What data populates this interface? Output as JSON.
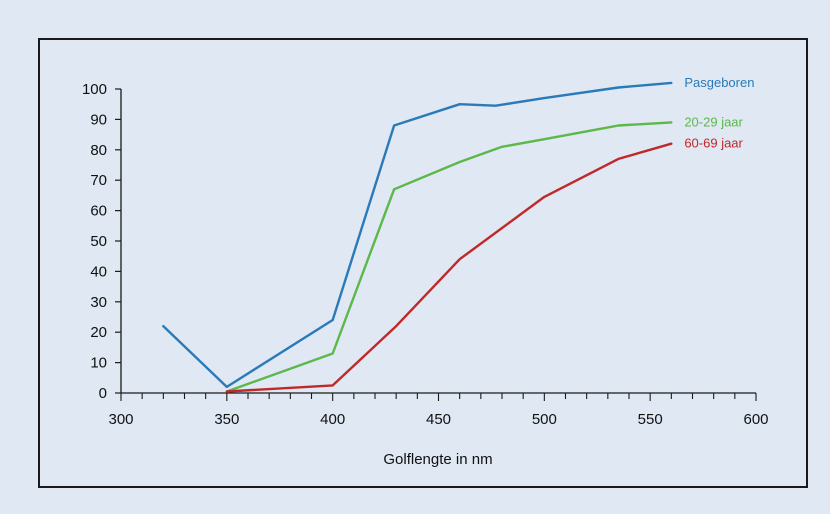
{
  "chart_data": {
    "type": "line",
    "xlabel": "Golflengte in nm",
    "ylabel": "",
    "xlim": [
      300,
      600
    ],
    "ylim": [
      0,
      100
    ],
    "xticks": [
      300,
      350,
      400,
      450,
      500,
      550,
      600
    ],
    "yticks": [
      0,
      10,
      20,
      30,
      40,
      50,
      60,
      70,
      80,
      90,
      100
    ],
    "x_minor_step": 10,
    "grid": false,
    "legend_placement": "right, at line ends",
    "series": [
      {
        "name": "Pasgeboren",
        "color": "#2a7ab8",
        "x": [
          320,
          350,
          400,
          429,
          460,
          477,
          500,
          535,
          560
        ],
        "y": [
          22,
          2,
          24,
          88,
          95,
          94.5,
          97,
          100.5,
          102
        ]
      },
      {
        "name": "20-29 jaar",
        "color": "#5cb84a",
        "x": [
          350,
          400,
          429,
          460,
          480,
          500,
          535,
          560
        ],
        "y": [
          0.5,
          13,
          67,
          76,
          81,
          83.5,
          88,
          89
        ]
      },
      {
        "name": "60-69 jaar",
        "color": "#c0282a",
        "x": [
          350,
          400,
          430,
          460,
          500,
          535,
          560
        ],
        "y": [
          0.5,
          2.5,
          22,
          44,
          64.5,
          77,
          82
        ]
      }
    ]
  }
}
